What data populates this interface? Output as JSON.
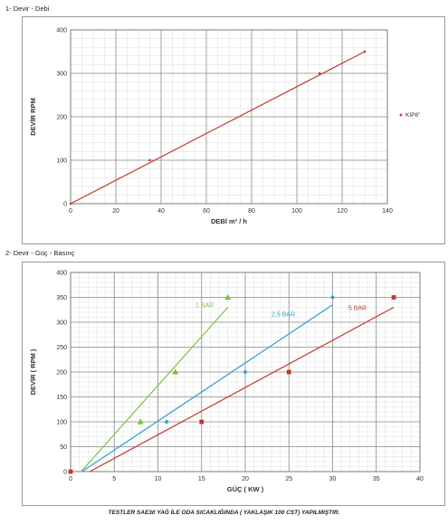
{
  "sections": {
    "chart1_title": "1- Devir - Debi",
    "chart2_title": "2- Devir - Güç - Basınç"
  },
  "footer": "TESTLER SAE30 YAĞ İLE ODA SICAKLIĞINDA ( YAKLAŞIK 100 CST) YAPILMIŞTIR.",
  "chart_data": [
    {
      "type": "scatter",
      "title": "",
      "xlabel": "DEBİ m³ / h",
      "ylabel": "DEVİR RPM",
      "xlim": [
        0,
        140
      ],
      "ylim": [
        0,
        400
      ],
      "xticks": [
        0,
        20,
        40,
        60,
        80,
        100,
        120,
        140
      ],
      "yticks": [
        0,
        100,
        200,
        300,
        400
      ],
      "grid": true,
      "legend": "right",
      "series": [
        {
          "name": "KIP6\"",
          "color": "#c0392b",
          "marker": "dot",
          "x": [
            0,
            35,
            110,
            130
          ],
          "y": [
            0,
            100,
            300,
            350
          ],
          "trendline": [
            [
              0,
              0
            ],
            [
              130,
              350
            ]
          ]
        }
      ]
    },
    {
      "type": "scatter",
      "title": "",
      "xlabel": "GÜÇ ( KW )",
      "ylabel": "DEVİR ( RPM )",
      "xlim": [
        0,
        40
      ],
      "ylim": [
        0,
        400
      ],
      "xticks": [
        0,
        5,
        10,
        15,
        20,
        25,
        30,
        35,
        40
      ],
      "yticks": [
        0,
        50,
        100,
        150,
        200,
        250,
        300,
        350,
        400
      ],
      "grid": true,
      "legend": "none",
      "series": [
        {
          "name": "1 BAR",
          "color": "#7dc242",
          "marker": "triangle",
          "x": [
            8,
            12,
            18
          ],
          "y": [
            100,
            200,
            350
          ],
          "trendline": [
            [
              1.2,
              0
            ],
            [
              18,
              330
            ]
          ],
          "label_pos": [
            14.3,
            330
          ]
        },
        {
          "name": "2,5 BAR",
          "color": "#2aa3cf",
          "marker": "diamond",
          "x": [
            11,
            20,
            30
          ],
          "y": [
            100,
            200,
            350
          ],
          "trendline": [
            [
              1.3,
              0
            ],
            [
              30,
              335
            ]
          ],
          "label_pos": [
            23,
            312
          ]
        },
        {
          "name": "5 BAR",
          "color": "#c0392b",
          "marker": "square",
          "x": [
            0,
            15,
            25,
            37
          ],
          "y": [
            0,
            100,
            200,
            350
          ],
          "trendline": [
            [
              2.2,
              0
            ],
            [
              37,
              330
            ]
          ],
          "label_pos": [
            31.8,
            325
          ]
        }
      ]
    }
  ]
}
